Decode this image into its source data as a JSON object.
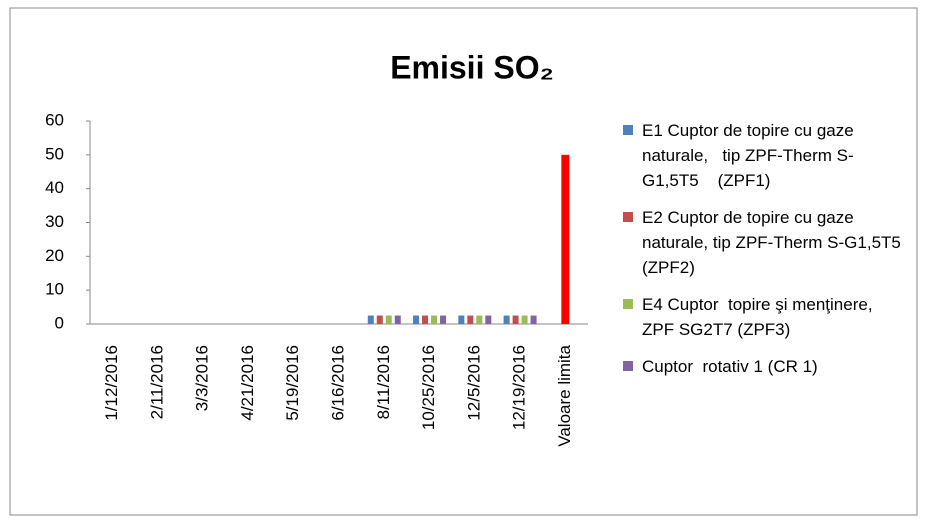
{
  "chart_data": {
    "type": "bar",
    "title": "Emisii SO₂",
    "categories": [
      "1/12/2016",
      "2/11/2016",
      "3/3/2016",
      "4/21/2016",
      "5/19/2016",
      "6/16/2016",
      "8/11/2016",
      "10/25/2016",
      "12/5/2016",
      "12/19/2016",
      "Valoare limita"
    ],
    "series": [
      {
        "name": "E1 Cuptor de topire cu gaze naturale,   tip ZPF-Therm S-G1,5T5    (ZPF1)",
        "color": "#4f81bd",
        "values": [
          null,
          null,
          null,
          null,
          null,
          null,
          2.5,
          2.5,
          2.5,
          2.5,
          null
        ]
      },
      {
        "name": "E2 Cuptor de topire cu gaze naturale, tip ZPF-Therm S-G1,5T5  (ZPF2)",
        "color": "#c0504d",
        "values": [
          null,
          null,
          null,
          null,
          null,
          null,
          2.5,
          2.5,
          2.5,
          2.5,
          null
        ]
      },
      {
        "name": "E4 Cuptor  topire şi menţinere, ZPF SG2T7 (ZPF3)",
        "color": "#9bbb59",
        "values": [
          null,
          null,
          null,
          null,
          null,
          null,
          2.5,
          2.5,
          2.5,
          2.5,
          null
        ]
      },
      {
        "name": "Cuptor  rotativ 1 (CR 1)",
        "color": "#8064a2",
        "values": [
          null,
          null,
          null,
          null,
          null,
          null,
          2.5,
          2.5,
          2.5,
          2.5,
          null
        ]
      },
      {
        "color": "#ff0000",
        "values": [
          null,
          null,
          null,
          null,
          null,
          null,
          null,
          null,
          null,
          null,
          50
        ]
      }
    ],
    "ylim": [
      0,
      60
    ],
    "yticks": [
      0,
      10,
      20,
      30,
      40,
      50,
      60
    ],
    "grid": false
  }
}
